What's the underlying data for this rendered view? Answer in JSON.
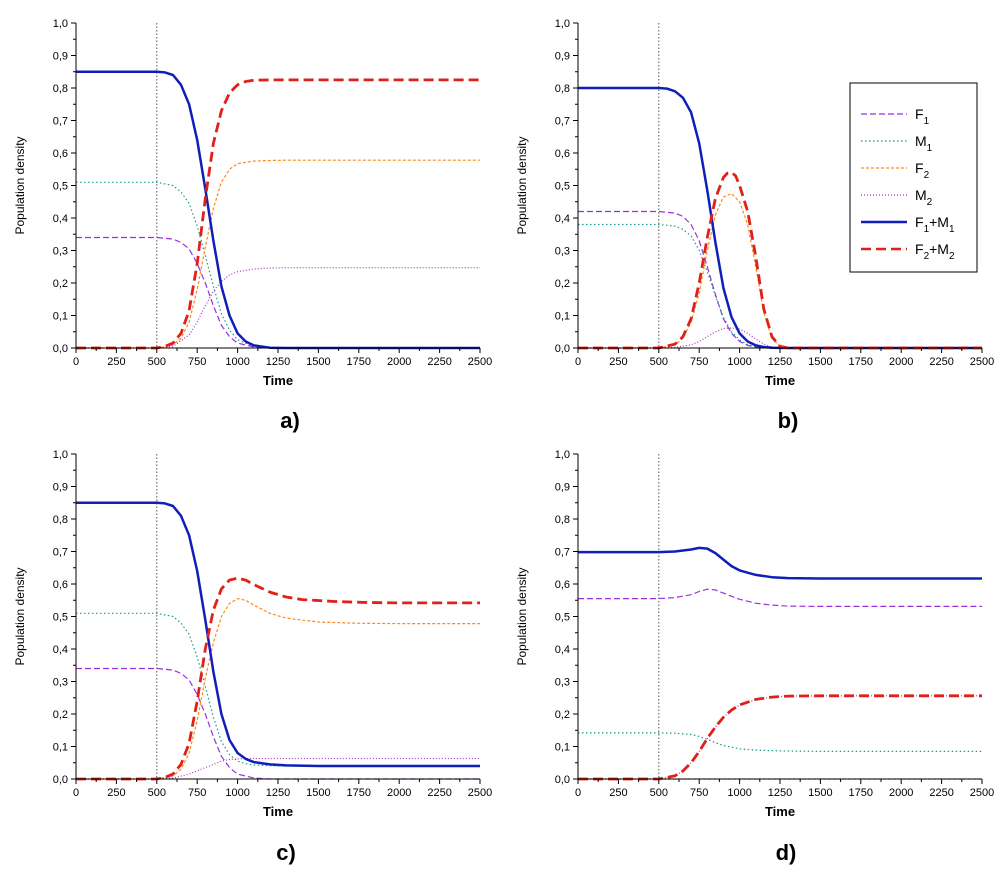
{
  "colors": {
    "F1": "#9b30e0",
    "M1": "#1a9a8c",
    "F2": "#ff8a1a",
    "M2": "#a23ab8",
    "F1M1": "#0f1fb8",
    "F2M2": "#e0201a",
    "axis": "#000000",
    "vline": "#555555"
  },
  "legend": {
    "placement": "top-right of panel b",
    "entries": [
      {
        "key": "F1",
        "base": "F",
        "sub": "1",
        "mid": "",
        "base2": "",
        "sub2": ""
      },
      {
        "key": "M1",
        "base": "M",
        "sub": "1",
        "mid": "",
        "base2": "",
        "sub2": ""
      },
      {
        "key": "F2",
        "base": "F",
        "sub": "2",
        "mid": "",
        "base2": "",
        "sub2": ""
      },
      {
        "key": "M2",
        "base": "M",
        "sub": "2",
        "mid": "",
        "base2": "",
        "sub2": ""
      },
      {
        "key": "F1M1",
        "base": "F",
        "sub": "1",
        "mid": "+M",
        "base2": "",
        "sub2": "1"
      },
      {
        "key": "F2M2",
        "base": "F",
        "sub": "2",
        "mid": "+M",
        "base2": "",
        "sub2": "2"
      }
    ]
  },
  "chart_data": [
    {
      "type": "line",
      "panel": "a)",
      "xlabel": "Time",
      "ylabel": "Population density",
      "xlim": [
        0,
        2500
      ],
      "ylim": [
        0,
        1.0
      ],
      "xticks": [
        "0",
        "250",
        "500",
        "750",
        "1000",
        "1250",
        "1500",
        "1750",
        "2000",
        "2250",
        "2500"
      ],
      "yticks": [
        "0,0",
        "0,1",
        "0,2",
        "0,3",
        "0,4",
        "0,5",
        "0,6",
        "0,7",
        "0,8",
        "0,9",
        "1,0"
      ],
      "vline_x": 500,
      "series": [
        {
          "name": "F1",
          "x": [
            0,
            500,
            600,
            650,
            700,
            750,
            800,
            850,
            900,
            950,
            1000,
            1100,
            1200,
            2500
          ],
          "values": [
            0.34,
            0.34,
            0.335,
            0.325,
            0.305,
            0.26,
            0.2,
            0.13,
            0.07,
            0.035,
            0.015,
            0.003,
            0,
            0
          ]
        },
        {
          "name": "M1",
          "x": [
            0,
            500,
            600,
            650,
            700,
            750,
            800,
            850,
            900,
            950,
            1000,
            1100,
            1200,
            2500
          ],
          "values": [
            0.51,
            0.51,
            0.5,
            0.48,
            0.445,
            0.375,
            0.285,
            0.19,
            0.105,
            0.055,
            0.025,
            0.005,
            0,
            0
          ]
        },
        {
          "name": "F2",
          "x": [
            0,
            500,
            550,
            600,
            650,
            700,
            750,
            800,
            850,
            900,
            950,
            1000,
            1100,
            1200,
            1300,
            2500
          ],
          "values": [
            0,
            0,
            0.003,
            0.01,
            0.03,
            0.08,
            0.18,
            0.31,
            0.43,
            0.51,
            0.55,
            0.567,
            0.575,
            0.577,
            0.578,
            0.578
          ]
        },
        {
          "name": "M2",
          "x": [
            0,
            500,
            600,
            700,
            750,
            800,
            850,
            900,
            950,
            1000,
            1100,
            1200,
            1300,
            1500,
            2500
          ],
          "values": [
            0,
            0,
            0.005,
            0.04,
            0.08,
            0.13,
            0.175,
            0.205,
            0.225,
            0.235,
            0.243,
            0.246,
            0.247,
            0.247,
            0.247
          ]
        },
        {
          "name": "F1M1",
          "x": [
            0,
            450,
            500,
            550,
            600,
            650,
            700,
            750,
            800,
            850,
            900,
            950,
            1000,
            1050,
            1100,
            1200,
            1300,
            2500
          ],
          "values": [
            0.85,
            0.85,
            0.85,
            0.848,
            0.84,
            0.81,
            0.75,
            0.64,
            0.49,
            0.33,
            0.19,
            0.1,
            0.045,
            0.02,
            0.008,
            0.001,
            0,
            0
          ]
        },
        {
          "name": "F2M2",
          "x": [
            0,
            500,
            550,
            600,
            650,
            700,
            750,
            800,
            850,
            900,
            950,
            1000,
            1050,
            1100,
            1200,
            1300,
            2500
          ],
          "values": [
            0,
            0,
            0.005,
            0.015,
            0.045,
            0.115,
            0.26,
            0.46,
            0.63,
            0.73,
            0.785,
            0.81,
            0.82,
            0.824,
            0.825,
            0.825,
            0.825
          ]
        }
      ]
    },
    {
      "type": "line",
      "panel": "b)",
      "xlabel": "Time",
      "ylabel": "Population density",
      "xlim": [
        0,
        2500
      ],
      "ylim": [
        0,
        1.0
      ],
      "xticks": [
        "0",
        "250",
        "500",
        "750",
        "1000",
        "1250",
        "1500",
        "1750",
        "2000",
        "2250",
        "2500"
      ],
      "yticks": [
        "0,0",
        "0,1",
        "0,2",
        "0,3",
        "0,4",
        "0,5",
        "0,6",
        "0,7",
        "0,8",
        "0,9",
        "1,0"
      ],
      "vline_x": 500,
      "series": [
        {
          "name": "F1",
          "x": [
            0,
            500,
            600,
            650,
            700,
            750,
            800,
            850,
            900,
            950,
            1000,
            1050,
            1100,
            1200,
            2500
          ],
          "values": [
            0.42,
            0.42,
            0.415,
            0.405,
            0.38,
            0.33,
            0.25,
            0.165,
            0.09,
            0.045,
            0.02,
            0.008,
            0.003,
            0,
            0
          ]
        },
        {
          "name": "M1",
          "x": [
            0,
            500,
            600,
            650,
            700,
            750,
            800,
            850,
            900,
            950,
            1000,
            1050,
            1100,
            1200,
            2500
          ],
          "values": [
            0.38,
            0.38,
            0.375,
            0.365,
            0.345,
            0.3,
            0.235,
            0.16,
            0.095,
            0.05,
            0.025,
            0.01,
            0.004,
            0,
            0
          ]
        },
        {
          "name": "F2",
          "x": [
            0,
            500,
            600,
            650,
            700,
            750,
            800,
            850,
            900,
            950,
            1000,
            1050,
            1100,
            1150,
            1200,
            1250,
            1300,
            2500
          ],
          "values": [
            0,
            0,
            0.01,
            0.03,
            0.08,
            0.17,
            0.3,
            0.41,
            0.465,
            0.475,
            0.45,
            0.38,
            0.25,
            0.11,
            0.03,
            0.005,
            0,
            0
          ]
        },
        {
          "name": "M2",
          "x": [
            0,
            500,
            600,
            700,
            750,
            800,
            850,
            900,
            950,
            1000,
            1050,
            1100,
            1150,
            1200,
            1250,
            2500
          ],
          "values": [
            0,
            0,
            0.002,
            0.01,
            0.02,
            0.035,
            0.05,
            0.06,
            0.062,
            0.058,
            0.045,
            0.028,
            0.012,
            0.003,
            0,
            0
          ]
        },
        {
          "name": "F1M1",
          "x": [
            0,
            450,
            500,
            550,
            600,
            650,
            700,
            750,
            800,
            850,
            900,
            950,
            1000,
            1050,
            1100,
            1150,
            1200,
            1300,
            2500
          ],
          "values": [
            0.8,
            0.8,
            0.8,
            0.798,
            0.79,
            0.77,
            0.725,
            0.63,
            0.485,
            0.325,
            0.185,
            0.095,
            0.045,
            0.02,
            0.008,
            0.003,
            0.001,
            0,
            0
          ]
        },
        {
          "name": "F2M2",
          "x": [
            0,
            500,
            600,
            650,
            700,
            750,
            800,
            850,
            900,
            925,
            950,
            975,
            1000,
            1050,
            1100,
            1150,
            1200,
            1250,
            1300,
            2500
          ],
          "values": [
            0,
            0,
            0.012,
            0.035,
            0.09,
            0.2,
            0.34,
            0.46,
            0.525,
            0.538,
            0.54,
            0.53,
            0.5,
            0.42,
            0.28,
            0.12,
            0.035,
            0.005,
            0,
            0
          ]
        }
      ]
    },
    {
      "type": "line",
      "panel": "c)",
      "xlabel": "Time",
      "ylabel": "Population density",
      "xlim": [
        0,
        2500
      ],
      "ylim": [
        0,
        1.0
      ],
      "xticks": [
        "0",
        "250",
        "500",
        "750",
        "1000",
        "1250",
        "1500",
        "1750",
        "2000",
        "2250",
        "2500"
      ],
      "yticks": [
        "0,0",
        "0,1",
        "0,2",
        "0,3",
        "0,4",
        "0,5",
        "0,6",
        "0,7",
        "0,8",
        "0,9",
        "1,0"
      ],
      "vline_x": 500,
      "series": [
        {
          "name": "F1",
          "x": [
            0,
            500,
            600,
            650,
            700,
            750,
            800,
            850,
            900,
            950,
            1000,
            1100,
            1200,
            2500
          ],
          "values": [
            0.34,
            0.34,
            0.335,
            0.325,
            0.305,
            0.26,
            0.2,
            0.13,
            0.07,
            0.035,
            0.015,
            0.003,
            0,
            0
          ]
        },
        {
          "name": "M1",
          "x": [
            0,
            500,
            600,
            650,
            700,
            750,
            800,
            850,
            900,
            950,
            1000,
            1050,
            1100,
            1200,
            1300,
            1500,
            2500
          ],
          "values": [
            0.51,
            0.51,
            0.5,
            0.48,
            0.445,
            0.375,
            0.285,
            0.19,
            0.115,
            0.075,
            0.055,
            0.047,
            0.043,
            0.041,
            0.04,
            0.04,
            0.04
          ]
        },
        {
          "name": "F2",
          "x": [
            0,
            500,
            600,
            650,
            700,
            750,
            800,
            850,
            900,
            950,
            1000,
            1050,
            1100,
            1200,
            1300,
            1500,
            1750,
            2000,
            2500
          ],
          "values": [
            0,
            0,
            0.01,
            0.03,
            0.08,
            0.18,
            0.31,
            0.42,
            0.5,
            0.54,
            0.555,
            0.55,
            0.535,
            0.51,
            0.495,
            0.483,
            0.479,
            0.478,
            0.478
          ]
        },
        {
          "name": "M2",
          "x": [
            0,
            500,
            600,
            700,
            750,
            800,
            850,
            900,
            950,
            1000,
            1050,
            1100,
            1200,
            1500,
            2500
          ],
          "values": [
            0,
            0,
            0.003,
            0.015,
            0.025,
            0.035,
            0.045,
            0.055,
            0.06,
            0.062,
            0.063,
            0.063,
            0.063,
            0.063,
            0.063
          ]
        },
        {
          "name": "F1M1",
          "x": [
            0,
            450,
            500,
            550,
            600,
            650,
            700,
            750,
            800,
            850,
            900,
            950,
            1000,
            1050,
            1100,
            1200,
            1300,
            1500,
            2500
          ],
          "values": [
            0.85,
            0.85,
            0.85,
            0.848,
            0.84,
            0.81,
            0.75,
            0.64,
            0.49,
            0.33,
            0.2,
            0.12,
            0.08,
            0.062,
            0.052,
            0.045,
            0.042,
            0.04,
            0.04
          ]
        },
        {
          "name": "F2M2",
          "x": [
            0,
            500,
            550,
            600,
            650,
            700,
            750,
            800,
            850,
            900,
            950,
            1000,
            1050,
            1100,
            1200,
            1300,
            1400,
            1600,
            1800,
            2000,
            2500
          ],
          "values": [
            0,
            0,
            0.005,
            0.015,
            0.045,
            0.11,
            0.24,
            0.4,
            0.52,
            0.585,
            0.612,
            0.618,
            0.612,
            0.598,
            0.575,
            0.56,
            0.552,
            0.546,
            0.543,
            0.542,
            0.542
          ]
        }
      ]
    },
    {
      "type": "line",
      "panel": "d)",
      "xlabel": "Time",
      "ylabel": "Population density",
      "xlim": [
        0,
        2500
      ],
      "ylim": [
        0,
        1.0
      ],
      "xticks": [
        "0",
        "250",
        "500",
        "750",
        "1000",
        "1250",
        "1500",
        "1750",
        "2000",
        "2250",
        "2500"
      ],
      "yticks": [
        "0,0",
        "0,1",
        "0,2",
        "0,3",
        "0,4",
        "0,5",
        "0,6",
        "0,7",
        "0,8",
        "0,9",
        "1,0"
      ],
      "vline_x": 500,
      "series": [
        {
          "name": "F1",
          "x": [
            0,
            500,
            600,
            700,
            750,
            800,
            850,
            900,
            1000,
            1100,
            1200,
            1300,
            1500,
            2000,
            2500
          ],
          "values": [
            0.555,
            0.555,
            0.558,
            0.567,
            0.577,
            0.584,
            0.582,
            0.572,
            0.553,
            0.541,
            0.535,
            0.532,
            0.531,
            0.531,
            0.531
          ]
        },
        {
          "name": "M1",
          "x": [
            0,
            500,
            600,
            700,
            750,
            800,
            850,
            900,
            1000,
            1100,
            1200,
            1300,
            1500,
            2000,
            2500
          ],
          "values": [
            0.142,
            0.142,
            0.141,
            0.137,
            0.131,
            0.122,
            0.112,
            0.103,
            0.093,
            0.089,
            0.087,
            0.086,
            0.085,
            0.085,
            0.085
          ]
        },
        {
          "name": "F2",
          "x": [
            0,
            2500
          ],
          "values": [
            0,
            0
          ]
        },
        {
          "name": "M2",
          "x": [
            0,
            500,
            600,
            650,
            700,
            750,
            800,
            850,
            900,
            950,
            1000,
            1100,
            1200,
            1300,
            1500,
            2000,
            2500
          ],
          "values": [
            0,
            0,
            0.01,
            0.025,
            0.05,
            0.085,
            0.125,
            0.16,
            0.19,
            0.212,
            0.228,
            0.245,
            0.252,
            0.255,
            0.256,
            0.256,
            0.256
          ]
        },
        {
          "name": "F1M1",
          "x": [
            0,
            500,
            600,
            700,
            750,
            800,
            850,
            900,
            950,
            1000,
            1100,
            1200,
            1300,
            1500,
            2000,
            2500
          ],
          "values": [
            0.698,
            0.698,
            0.7,
            0.706,
            0.711,
            0.709,
            0.695,
            0.675,
            0.655,
            0.642,
            0.628,
            0.621,
            0.618,
            0.617,
            0.617,
            0.617
          ]
        },
        {
          "name": "F2M2",
          "x": [
            0,
            500,
            600,
            650,
            700,
            750,
            800,
            850,
            900,
            950,
            1000,
            1100,
            1200,
            1300,
            1500,
            2000,
            2500
          ],
          "values": [
            0,
            0,
            0.01,
            0.025,
            0.05,
            0.085,
            0.125,
            0.16,
            0.19,
            0.212,
            0.228,
            0.245,
            0.252,
            0.255,
            0.256,
            0.256,
            0.256
          ]
        }
      ]
    }
  ]
}
